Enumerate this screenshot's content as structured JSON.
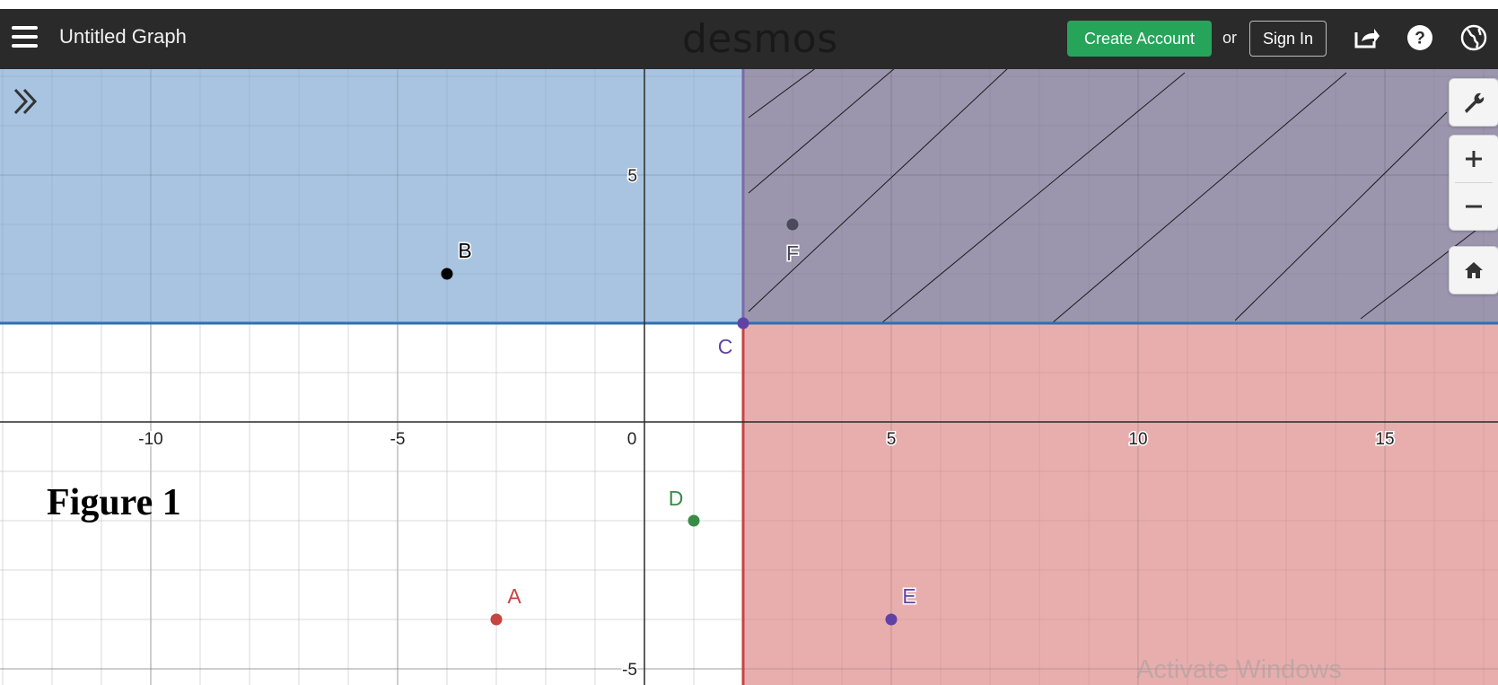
{
  "header": {
    "title": "Untitled Graph",
    "logo": "desmos",
    "create_account_label": "Create Account",
    "or_label": "or",
    "sign_in_label": "Sign In",
    "icons": [
      "menu-icon",
      "share-icon",
      "help-icon",
      "globe-icon"
    ]
  },
  "graph": {
    "x_ticks": [
      "-10",
      "-5",
      "0",
      "5",
      "10",
      "15"
    ],
    "y_ticks": [
      "5",
      "-5"
    ],
    "x_range": [
      -13,
      17.3
    ],
    "y_range": [
      -5.3,
      7.3
    ],
    "shaded_regions": [
      {
        "name": "y >= 2",
        "color": "#2d70b3"
      },
      {
        "name": "x >= 2",
        "color": "#c74440"
      }
    ],
    "points": [
      {
        "label": "A",
        "x": -3,
        "y": -4,
        "color": "#c74440"
      },
      {
        "label": "B",
        "x": -4,
        "y": 3,
        "color": "#000000"
      },
      {
        "label": "C",
        "x": 2,
        "y": 2,
        "color": "#6042a6"
      },
      {
        "label": "D",
        "x": 1,
        "y": -2,
        "color": "#388c46"
      },
      {
        "label": "E",
        "x": 5,
        "y": -4,
        "color": "#6042a6"
      },
      {
        "label": "F",
        "x": 3,
        "y": 4,
        "color": "#4a4a5a"
      }
    ],
    "controls": [
      "wrench-icon",
      "zoom-in-icon",
      "zoom-out-icon",
      "home-icon"
    ]
  },
  "caption": "Figure 1",
  "watermark": "Activate Windows"
}
